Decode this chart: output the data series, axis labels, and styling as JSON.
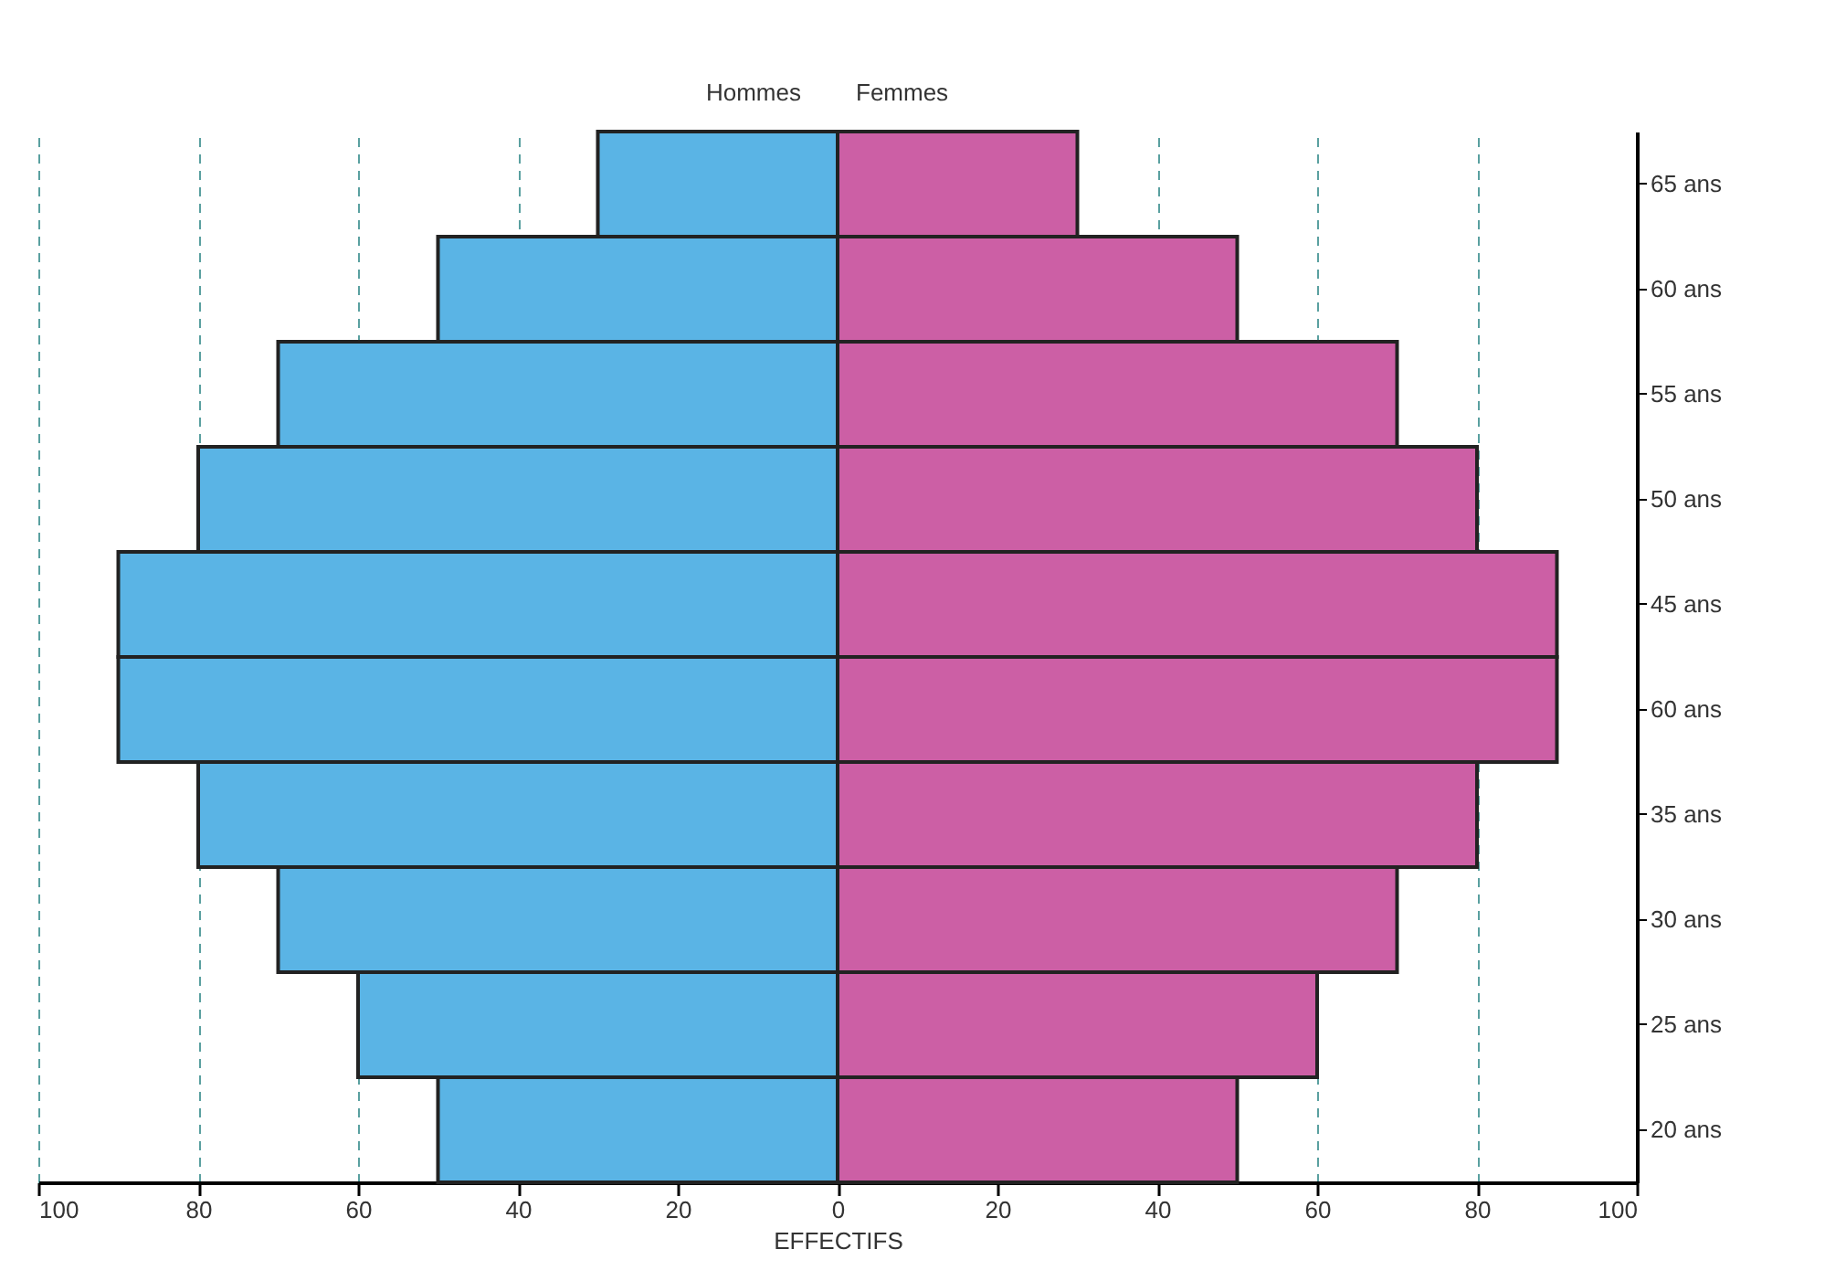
{
  "chart_data": {
    "type": "bar",
    "orientation": "horizontal",
    "xlabel": "EFFECTIFS",
    "categories": [
      "65 ans",
      "60 ans",
      "55 ans",
      "50 ans",
      "45 ans",
      "60 ans",
      "35 ans",
      "30 ans",
      "25 ans",
      "20 ans"
    ],
    "series": [
      {
        "name": "Hommes",
        "color": "#5ab4e5",
        "values": [
          -30,
          -50,
          -70,
          -80,
          -90,
          -90,
          -80,
          -70,
          -60,
          -50
        ]
      },
      {
        "name": "Femmes",
        "color": "#cc5fa5",
        "values": [
          30,
          50,
          70,
          80,
          90,
          90,
          80,
          70,
          60,
          50
        ]
      }
    ],
    "xlim": [
      -100,
      100
    ],
    "xticks": [
      {
        "value": -100,
        "label": "100"
      },
      {
        "value": -80,
        "label": "80"
      },
      {
        "value": -60,
        "label": "60"
      },
      {
        "value": -40,
        "label": "40"
      },
      {
        "value": -20,
        "label": "20"
      },
      0,
      20,
      40,
      60,
      80,
      100
    ],
    "grid": "x",
    "legend": false,
    "stacked": true
  }
}
